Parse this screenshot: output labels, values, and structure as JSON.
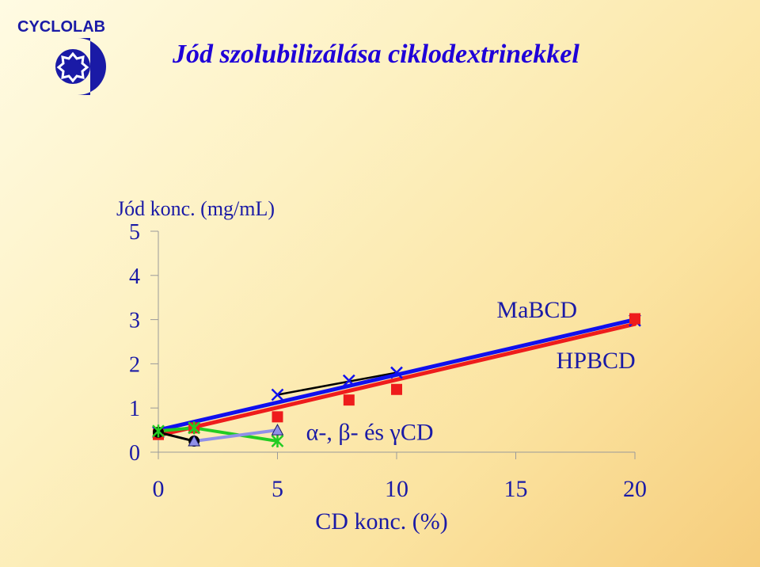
{
  "page": {
    "title": "Jód szolubilizálása ciklodextrinekkel",
    "logo_text": "CYCLOLAB",
    "logo_icon": "cyclodextrin-ring-icon"
  },
  "colors": {
    "text": "#1a1aa6",
    "title": "#1f00d8",
    "red": "#ee1c1c",
    "blue": "#1010ee",
    "black": "#000000",
    "green": "#22cc22",
    "lavender": "#9090e8"
  },
  "chart_data": {
    "type": "line",
    "ylabel": "Jód konc. (mg/mL)",
    "xlabel": "CD konc. (%)",
    "xlim": [
      0,
      20
    ],
    "ylim": [
      0,
      5
    ],
    "x_ticks": [
      "0",
      "5",
      "10",
      "15",
      "20"
    ],
    "y_ticks": [
      "0",
      "1",
      "2",
      "3",
      "4",
      "5"
    ],
    "grid": false,
    "annotations": [
      {
        "text": "MaBCD",
        "x": 14.2,
        "y": 3.05
      },
      {
        "text": "HPBCD",
        "x": 16.7,
        "y": 1.9
      },
      {
        "text": "α-, β- és γCD",
        "x": 6.2,
        "y": 0.28
      }
    ],
    "series": [
      {
        "key": "mabcd_points",
        "color": "#1010ee",
        "marker": "x",
        "points": [
          [
            0,
            0.45
          ],
          [
            5,
            1.3
          ],
          [
            8,
            1.62
          ],
          [
            10,
            1.8
          ],
          [
            20,
            2.98
          ]
        ]
      },
      {
        "key": "hpbcd_points",
        "color": "#ee1c1c",
        "marker": "square",
        "points": [
          [
            0,
            0.4
          ],
          [
            1.5,
            0.55
          ],
          [
            5,
            0.8
          ],
          [
            8,
            1.18
          ],
          [
            10,
            1.42
          ],
          [
            20,
            3.02
          ]
        ]
      },
      {
        "key": "alpha_cd",
        "color": "#000000",
        "marker": "circle",
        "points": [
          [
            0,
            0.45
          ],
          [
            1.5,
            0.25
          ]
        ]
      },
      {
        "key": "beta_cd",
        "color": "#22cc22",
        "marker": "asterisk",
        "points": [
          [
            0,
            0.48
          ],
          [
            1.5,
            0.55
          ],
          [
            5,
            0.25
          ]
        ]
      },
      {
        "key": "gamma_cd",
        "color": "#9090e8",
        "marker": "triangle",
        "points": [
          [
            1.5,
            0.25
          ],
          [
            5,
            0.5
          ]
        ]
      }
    ],
    "fit_lines": [
      {
        "key": "black_fit",
        "color": "#000000",
        "points": [
          [
            5,
            1.3
          ],
          [
            10,
            1.8
          ]
        ]
      },
      {
        "key": "blue_fit",
        "color": "#1010ee",
        "points": [
          [
            0,
            0.5
          ],
          [
            20,
            3.0
          ]
        ]
      },
      {
        "key": "red_fit",
        "color": "#ee1c1c",
        "points": [
          [
            0,
            0.38
          ],
          [
            20,
            2.9
          ]
        ]
      }
    ]
  }
}
